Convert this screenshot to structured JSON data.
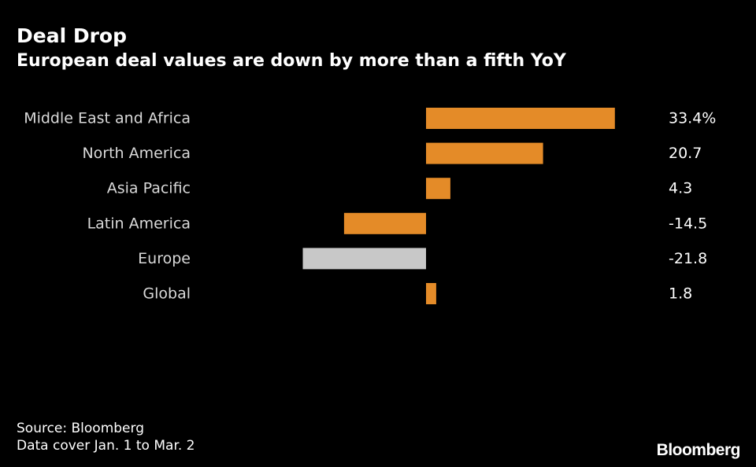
{
  "header": {
    "title": "Deal Drop",
    "subtitle": "European deal values are down by more than a fifth YoY"
  },
  "footer": {
    "source": "Source: Bloomberg",
    "note": "Data cover Jan. 1 to Mar. 2",
    "logo": "Bloomberg"
  },
  "colors": {
    "bar": "#e48b28",
    "highlight": "#c8c8c8",
    "background": "#000000",
    "text": "#ffffff"
  },
  "chart_data": {
    "type": "bar",
    "orientation": "horizontal",
    "categories": [
      "Middle East and Africa",
      "North America",
      "Asia Pacific",
      "Latin America",
      "Europe",
      "Global"
    ],
    "values": [
      33.4,
      20.7,
      4.3,
      -14.5,
      -21.8,
      1.8
    ],
    "value_labels": [
      "33.4%",
      "20.7",
      "4.3",
      "-14.5",
      "-21.8",
      "1.8"
    ],
    "highlight_category": "Europe",
    "xlim": [
      -21.8,
      33.4
    ],
    "title": "Deal Drop",
    "subtitle": "European deal values are down by more than a fifth YoY",
    "grid": false,
    "legend": "none"
  }
}
